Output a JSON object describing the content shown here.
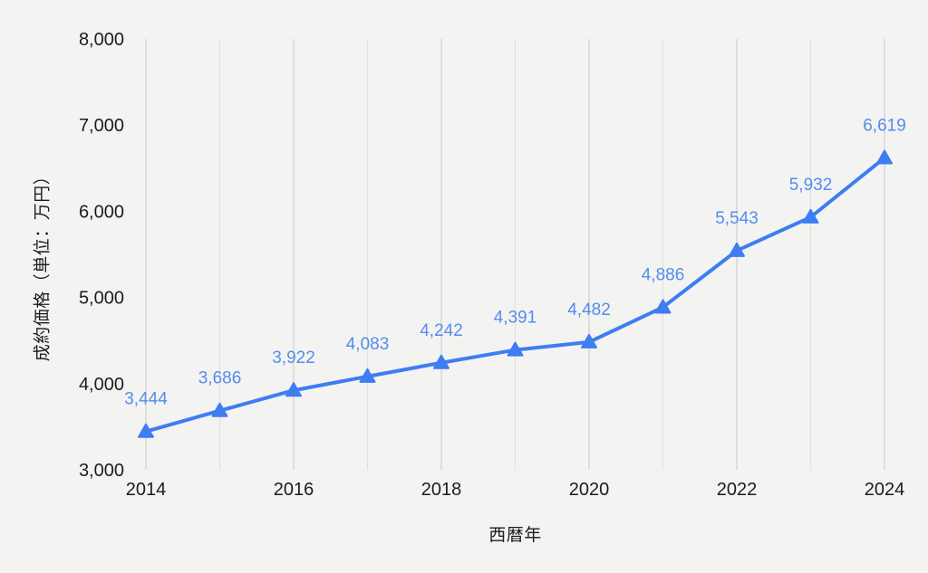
{
  "chart_data": {
    "type": "line",
    "title": "",
    "xlabel": "西暦年",
    "ylabel": "成約価格（単位：万円）",
    "x": [
      2014,
      2015,
      2016,
      2017,
      2018,
      2019,
      2020,
      2021,
      2022,
      2023,
      2024
    ],
    "series": [
      {
        "name": "成約価格",
        "values": [
          3444,
          3686,
          3922,
          4083,
          4242,
          4391,
          4482,
          4886,
          5543,
          5932,
          6619
        ]
      }
    ],
    "data_labels": [
      "3,444",
      "3,686",
      "3,922",
      "4,083",
      "4,242",
      "4,391",
      "4,482",
      "4,886",
      "5,543",
      "5,932",
      "6,619"
    ],
    "y_ticks": [
      3000,
      4000,
      5000,
      6000,
      7000,
      8000
    ],
    "y_tick_labels": [
      "3,000",
      "4,000",
      "5,000",
      "6,000",
      "7,000",
      "8,000"
    ],
    "x_tick_years": [
      2014,
      2016,
      2018,
      2020,
      2022,
      2024
    ],
    "x_tick_labels": [
      "2014",
      "2016",
      "2018",
      "2020",
      "2022",
      "2024"
    ],
    "ylim": [
      3000,
      8000
    ],
    "grid": "vertical-only",
    "legend": "none",
    "marker": "triangle-up",
    "colors": {
      "line": "#3e7df2",
      "marker": "#3e7df2",
      "data_label": "#548cf0",
      "tick_text": "#1c1c1c",
      "axis_title_text": "#1c1c1c",
      "grid_major": "#c9c9c9",
      "grid_minor": "#dfdfdd",
      "background": "#f3f3f1"
    }
  }
}
